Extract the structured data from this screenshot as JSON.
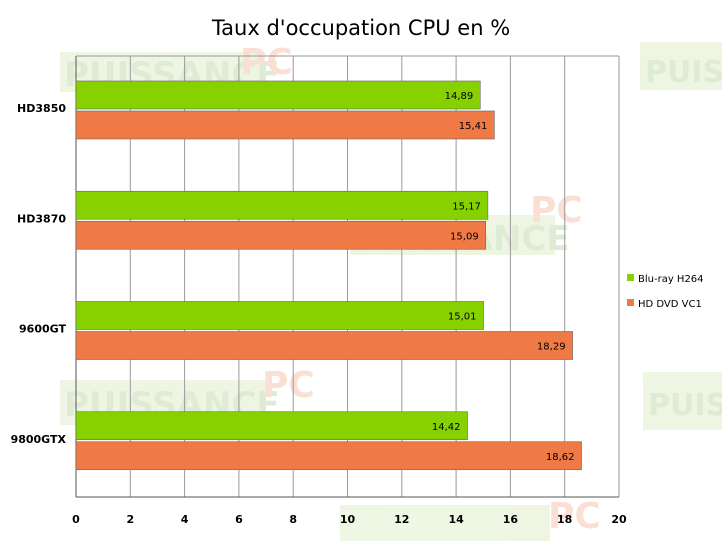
{
  "chart_data": {
    "type": "bar",
    "orientation": "horizontal",
    "title": "Taux d'occupation CPU en %",
    "categories": [
      "HD3850",
      "HD3870",
      "9600GT",
      "9800GTX"
    ],
    "series": [
      {
        "name": "Blu-ray H264",
        "color": "#88d100",
        "values": [
          14.89,
          15.17,
          15.01,
          14.42
        ],
        "labels": [
          "14,89",
          "15,17",
          "15,01",
          "14,42"
        ]
      },
      {
        "name": "HD DVD VC1",
        "color": "#ef7a45",
        "values": [
          15.41,
          15.09,
          18.29,
          18.62
        ],
        "labels": [
          "15,41",
          "15,09",
          "18,29",
          "18,62"
        ]
      }
    ],
    "xlim": [
      0,
      20
    ],
    "xticks": [
      0,
      2,
      4,
      6,
      8,
      10,
      12,
      14,
      16,
      18,
      20
    ],
    "grid": true,
    "legend_position": "right"
  }
}
